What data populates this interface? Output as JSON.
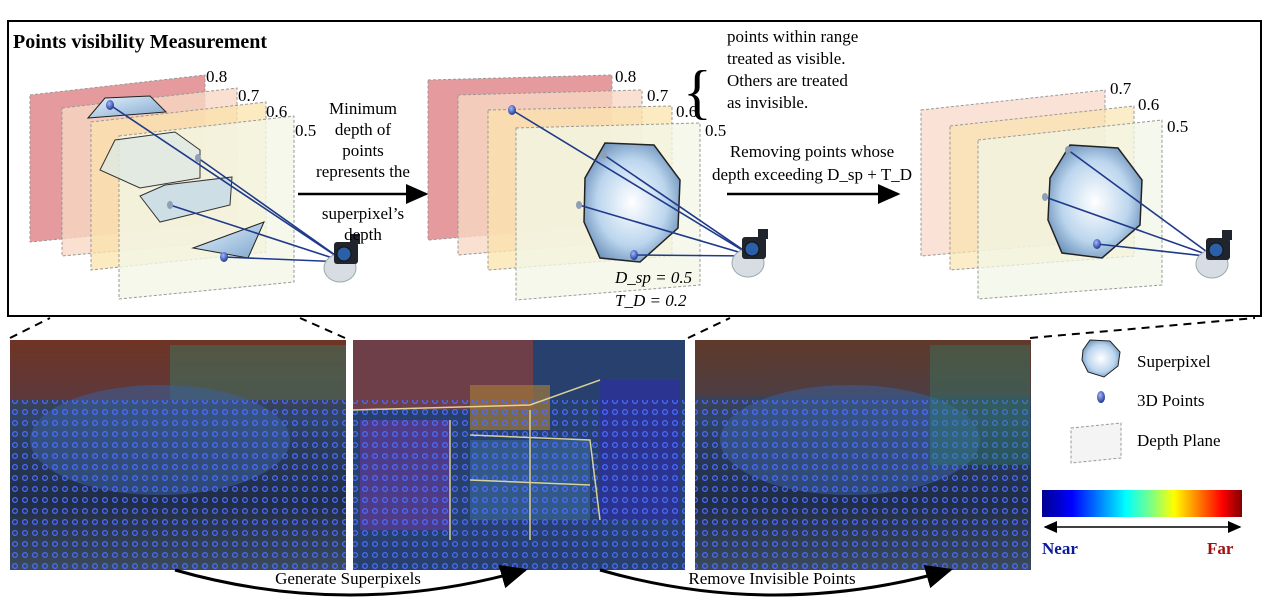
{
  "title": "Points visibility Measurement",
  "panel1": {
    "plane_labels": [
      "0.8",
      "0.7",
      "0.6",
      "0.5"
    ]
  },
  "step1_text": [
    "Minimum",
    "depth of",
    "points",
    "represents the",
    "superpixel’s",
    "depth"
  ],
  "panel2": {
    "plane_labels": [
      "0.8",
      "0.7",
      "0.6",
      "0.5"
    ],
    "annotation": [
      "points within range",
      "treated as visible.",
      "Others are treated",
      "as invisible."
    ],
    "dsp_label": "D_sp = 0.5",
    "td_label": "T_D = 0.2"
  },
  "step2_text": [
    "Removing points whose",
    "depth exceeding D_sp + T_D"
  ],
  "panel3": {
    "plane_labels": [
      "0.7",
      "0.6",
      "0.5"
    ]
  },
  "bottom_arrows": [
    "Generate Superpixels",
    "Remove Invisible Points"
  ],
  "legend": {
    "superpixel": "Superpixel",
    "points": "3D Points",
    "plane": "Depth Plane"
  },
  "colorbar": {
    "near": "Near",
    "far": "Far",
    "colors": [
      "#00008f",
      "#0000ff",
      "#00a0ff",
      "#00ffff",
      "#80ff80",
      "#ffff00",
      "#ff8000",
      "#ff0000",
      "#800000"
    ]
  },
  "colors": {
    "near": "#0a1a9e",
    "far": "#a01010",
    "line": "#1f3a8a"
  }
}
